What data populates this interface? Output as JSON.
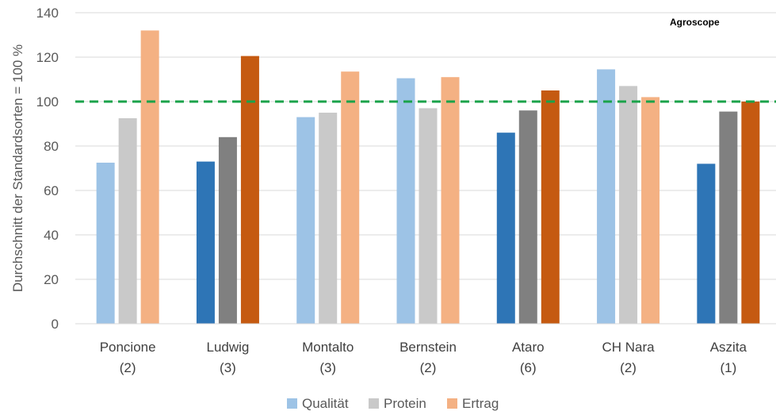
{
  "chart_data": {
    "type": "bar",
    "categories": [
      [
        "Poncione",
        "(2)"
      ],
      [
        "Ludwig",
        "(3)"
      ],
      [
        "Montalto",
        "(3)"
      ],
      [
        "Bernstein",
        "(2)"
      ],
      [
        "Ataro",
        "(6)"
      ],
      [
        "CH Nara",
        "(2)"
      ],
      [
        "Aszita",
        "(1)"
      ]
    ],
    "series": [
      {
        "name": "Qualität",
        "values": [
          72.5,
          73,
          93,
          110.5,
          86,
          114.5,
          72
        ]
      },
      {
        "name": "Protein",
        "values": [
          92.5,
          84,
          95,
          97,
          96,
          107,
          95.5
        ]
      },
      {
        "name": "Ertrag",
        "values": [
          132,
          120.5,
          113.5,
          111,
          105,
          102,
          100
        ]
      }
    ],
    "ylabel": "Durchschnitt der Standardsorten = 100 %",
    "ylim": [
      0,
      140
    ],
    "yticks": [
      0,
      20,
      40,
      60,
      80,
      100,
      120,
      140
    ],
    "reference_line": {
      "value": 100,
      "style": "dashed",
      "color": "#1aa34a"
    },
    "legend_position": "bottom",
    "colors": {
      "light": [
        "#9dc3e6",
        "#c9c9c9",
        "#f4b183"
      ],
      "dark": [
        "#2e75b6",
        "#808080",
        "#c55a11"
      ]
    },
    "dark_categories": [
      1,
      4,
      6
    ]
  },
  "brand": "Agroscope"
}
